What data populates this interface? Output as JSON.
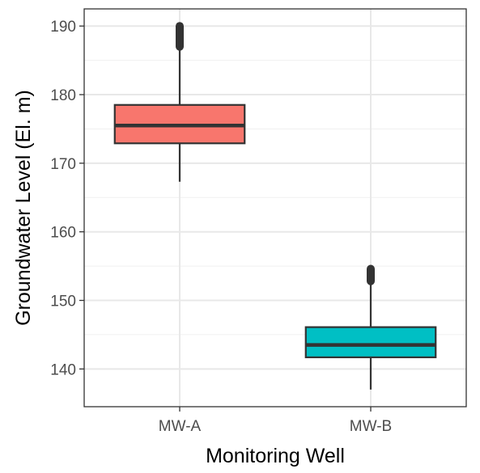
{
  "chart_data": {
    "type": "boxplot",
    "xlabel": "Monitoring Well",
    "ylabel": "Groundwater Level (El. m)",
    "ylim": [
      134.5,
      192.5
    ],
    "y_ticks": [
      140,
      150,
      160,
      170,
      180,
      190
    ],
    "y_minor_ticks": [
      145,
      155,
      165,
      175,
      185
    ],
    "grid": true,
    "legend": "none",
    "categories": [
      "MW-A",
      "MW-B"
    ],
    "boxes": [
      {
        "category": "MW-A",
        "min": 167.3,
        "q1": 172.9,
        "median": 175.5,
        "q3": 178.5,
        "whisker_high": 187.0,
        "outliers_range": [
          187.0,
          190.0
        ],
        "color": "#F8766D"
      },
      {
        "category": "MW-B",
        "min": 137.0,
        "q1": 141.7,
        "median": 143.5,
        "q3": 146.1,
        "whisker_high": 152.8,
        "outliers_range": [
          152.8,
          154.6
        ],
        "color": "#00BFC4"
      }
    ]
  }
}
